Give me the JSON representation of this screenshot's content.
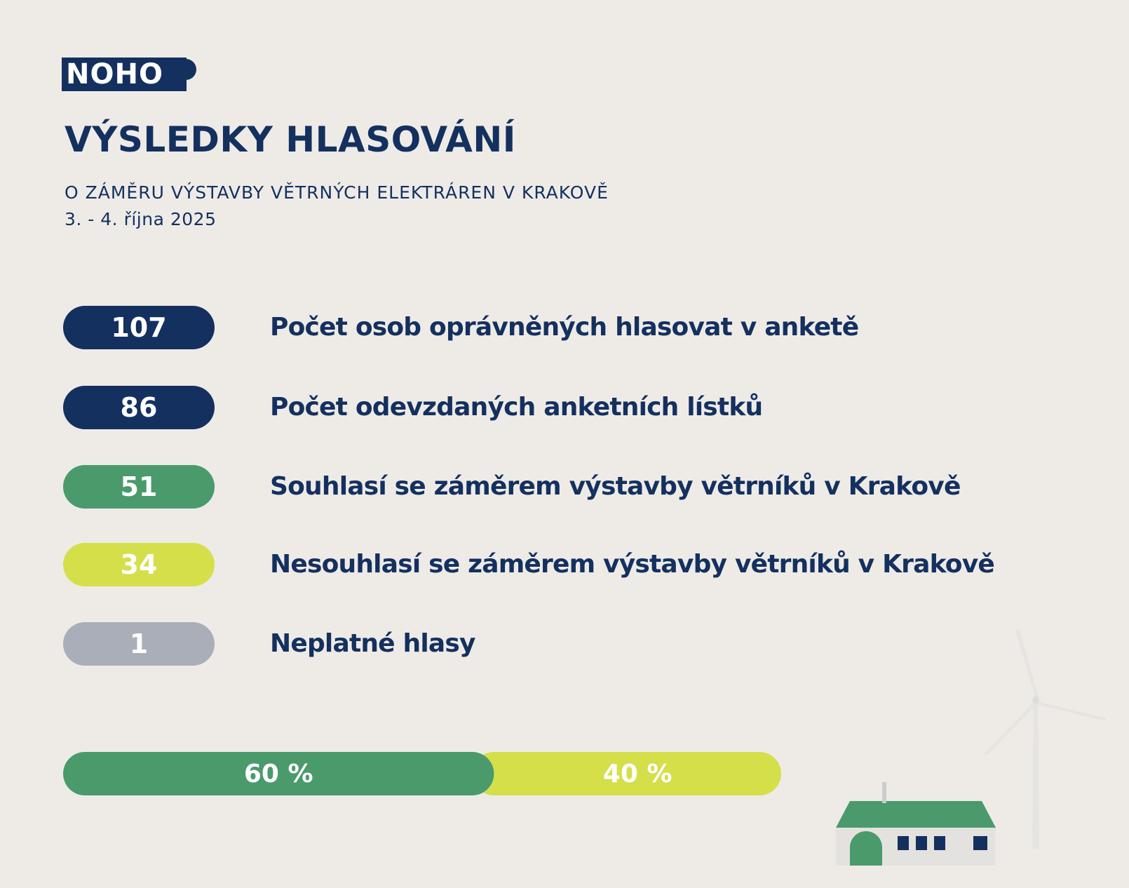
{
  "logo": "NOHO",
  "header": {
    "title": "VÝSLEDKY HLASOVÁNÍ",
    "subtitle": "O ZÁMĚRU VÝSTAVBY VĚTRNÝCH ELEKTRÁREN V KRAKOVĚ",
    "date": "3. - 4. října 2025"
  },
  "stats": [
    {
      "value": 107,
      "label": "Počet osob oprávněných hlasovat v anketě",
      "color": "#14305f"
    },
    {
      "value": 86,
      "label": "Počet odevzdaných anketních lístků",
      "color": "#14305f"
    },
    {
      "value": 51,
      "label": "Souhlasí se záměrem výstavby větrníků v Krakově",
      "color": "#4a9a6c"
    },
    {
      "value": 34,
      "label": "Nesouhlasí se záměrem výstavby větrníků v Krakově",
      "color": "#d4df4a"
    },
    {
      "value": 1,
      "label": "Neplatné hlasy",
      "color": "#a9aeb8"
    }
  ],
  "split_bar": {
    "segments": [
      {
        "value": 60,
        "label": "60 %",
        "color": "#4a9a6c"
      },
      {
        "value": 40,
        "label": "40 %",
        "color": "#d4df4a"
      }
    ]
  }
}
